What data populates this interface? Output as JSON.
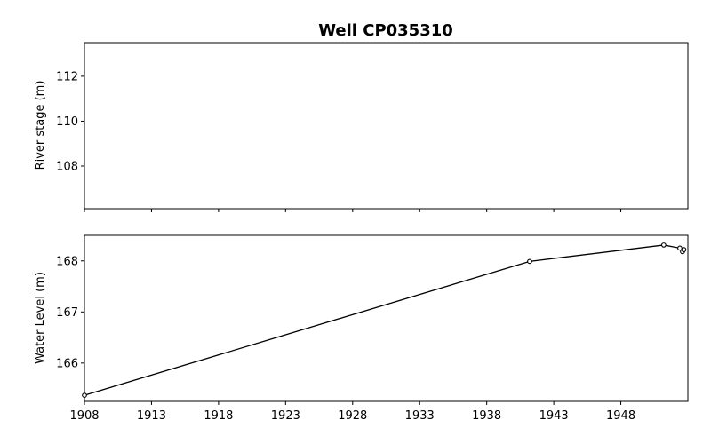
{
  "chart_data": {
    "type": "line",
    "title": "Well CP035310",
    "panels": [
      {
        "id": "river",
        "ylabel": "River stage (m)",
        "ylim": [
          106.1,
          113.5
        ],
        "yticks": [
          108,
          110,
          112
        ],
        "series": []
      },
      {
        "id": "water",
        "ylabel": "Water Level (m)",
        "ylim": [
          165.25,
          168.5
        ],
        "yticks": [
          166,
          167,
          168
        ],
        "series": [
          {
            "marker": "circle",
            "color": "#000000",
            "x": [
              1908.0,
              1941.2,
              1951.2,
              1952.4,
              1952.6,
              1952.7
            ],
            "y": [
              165.37,
              167.99,
              168.31,
              168.25,
              168.18,
              168.22
            ]
          }
        ]
      }
    ],
    "xlim": [
      1908,
      1953
    ],
    "xticks": [
      1908,
      1913,
      1918,
      1923,
      1928,
      1933,
      1938,
      1943,
      1948
    ],
    "xtick_labels": [
      "1908",
      "1913",
      "1918",
      "1923",
      "1928",
      "1933",
      "1938",
      "1943",
      "1948"
    ],
    "grid": false
  }
}
